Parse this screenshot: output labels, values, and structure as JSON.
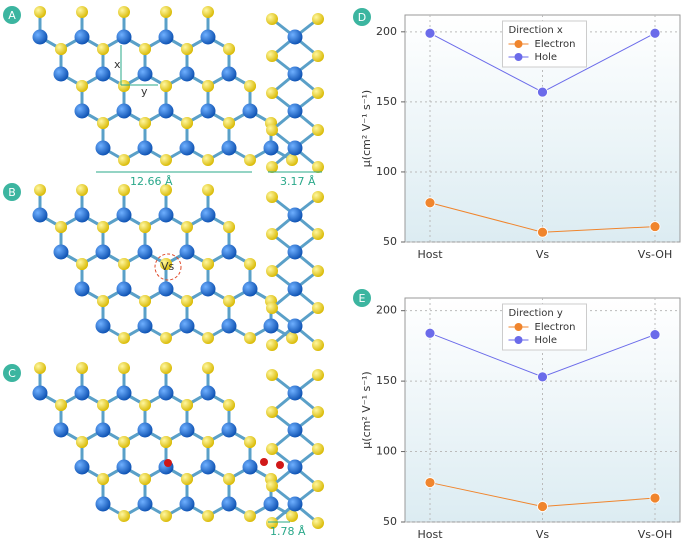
{
  "panels": {
    "labels": [
      "A",
      "B",
      "C",
      "D",
      "E"
    ],
    "axis_x": "x",
    "axis_y": "y",
    "width_a": "12.66 Å",
    "thickness_a": "3.17 Å",
    "vacancy": "Vs",
    "offset_c": "1.78 Å"
  },
  "chart_data": [
    {
      "type": "line",
      "legend_title": "Direction x",
      "y_label": "μ(cm² V⁻¹ s⁻¹)",
      "categories": [
        "Host",
        "Vs",
        "Vs-OH"
      ],
      "series": [
        {
          "name": "Electron",
          "color": "#f0852d",
          "values": [
            78,
            57,
            61
          ]
        },
        {
          "name": "Hole",
          "color": "#6b6bea",
          "values": [
            199,
            157,
            199
          ]
        }
      ],
      "ylim": [
        50,
        212
      ],
      "yticks": [
        50,
        100,
        150,
        200
      ],
      "grid": true,
      "legend": "upper center"
    },
    {
      "type": "line",
      "legend_title": "Direction y",
      "y_label": "μ(cm² V⁻¹ s⁻¹)",
      "categories": [
        "Host",
        "Vs",
        "Vs-OH"
      ],
      "series": [
        {
          "name": "Electron",
          "color": "#f0852d",
          "values": [
            78,
            61,
            67
          ]
        },
        {
          "name": "Hole",
          "color": "#6b6bea",
          "values": [
            184,
            153,
            183
          ]
        }
      ],
      "ylim": [
        50,
        209
      ],
      "yticks": [
        50,
        100,
        150,
        200
      ],
      "grid": true,
      "legend": "upper center"
    }
  ]
}
